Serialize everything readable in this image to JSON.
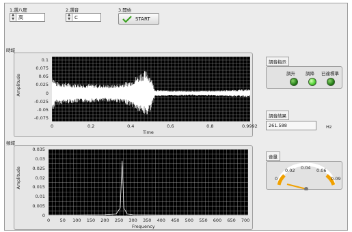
{
  "controls": {
    "octave": {
      "label": "1.選八度",
      "value": "高"
    },
    "note": {
      "label": "2.選音",
      "value": "C"
    },
    "start": {
      "label": "3.開始",
      "button": "START"
    }
  },
  "time_graph": {
    "title": "時域",
    "ylabel": "Amplitude",
    "xlabel": "Time",
    "yticks": [
      "0.1",
      "0.075",
      "0.05",
      "0.025",
      "0",
      "-0.025",
      "-0.05",
      "-0.075"
    ],
    "xticks": [
      "0",
      "0.2",
      "0.4",
      "0.6",
      "0.8",
      "0.9992"
    ]
  },
  "freq_graph": {
    "title": "頻域",
    "ylabel": "Amplitude",
    "xlabel": "Frequency",
    "yticks": [
      "0.035",
      "0.03",
      "0.025",
      "0.02",
      "0.015",
      "0.01",
      "0.005",
      "0"
    ],
    "xticks": [
      "0",
      "50",
      "100",
      "150",
      "200",
      "250",
      "300",
      "350",
      "400",
      "450",
      "500",
      "550",
      "600",
      "650",
      "700"
    ]
  },
  "tuning": {
    "title": "調音指示",
    "leds": [
      {
        "label": "調升",
        "on": false
      },
      {
        "label": "調降",
        "on": true
      },
      {
        "label": "已達標準",
        "on": false
      }
    ]
  },
  "result": {
    "title": "調音結果",
    "value": "261.588",
    "unit": "Hz"
  },
  "volume": {
    "title": "音量",
    "ticks": [
      "0",
      "0.02",
      "0.04",
      "0.06",
      "0.09"
    ]
  },
  "colors": {
    "plot_bg": "#000000",
    "signal": "#ffffff",
    "grid": "#b8b8b8",
    "needle": "#f0a000",
    "led_on": "#57d63a"
  },
  "chart_data": [
    {
      "type": "line",
      "title": "時域",
      "xlabel": "Time",
      "ylabel": "Amplitude",
      "xlim": [
        0,
        0.9992
      ],
      "ylim": [
        -0.085,
        0.11
      ],
      "x": [
        0,
        0.02,
        0.1,
        0.2,
        0.3,
        0.35,
        0.4,
        0.45,
        0.48,
        0.5,
        0.52,
        0.6,
        0.7,
        0.8,
        0.9,
        0.9992
      ],
      "series": [
        {
          "values": [
            0.06,
            0.035,
            0.03,
            0.028,
            0.025,
            0.03,
            0.04,
            0.065,
            0.07,
            0.05,
            0.01,
            0.008,
            0.007,
            0.008,
            0.01,
            0.012
          ]
        }
      ]
    },
    {
      "type": "line",
      "title": "頻域",
      "xlabel": "Frequency",
      "ylabel": "Amplitude",
      "xlim": [
        0,
        710
      ],
      "ylim": [
        0,
        0.035
      ],
      "x": [
        0,
        50,
        100,
        200,
        240,
        255,
        262,
        268,
        280,
        300,
        400,
        500,
        600,
        710
      ],
      "series": [
        {
          "values": [
            0.0003,
            0.0003,
            0.0003,
            0.0004,
            0.0008,
            0.004,
            0.029,
            0.004,
            0.0008,
            0.0004,
            0.0003,
            0.0003,
            0.0003,
            0.0003
          ]
        }
      ]
    }
  ]
}
